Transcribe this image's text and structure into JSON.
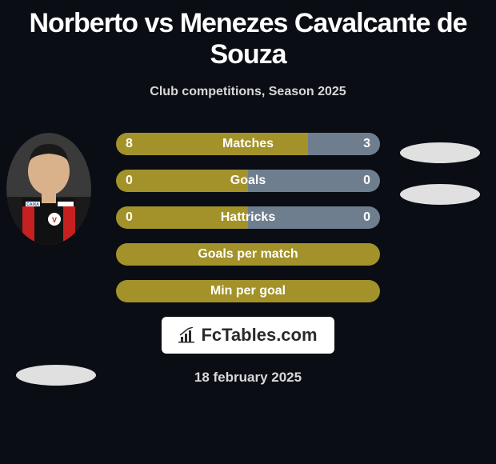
{
  "title": "Norberto vs Menezes Cavalcante de Souza",
  "subtitle": "Club competitions, Season 2025",
  "colors": {
    "olive": "#a39229",
    "slate": "#6f7e8f",
    "ellipse": "#e0e0e0",
    "bg": "#0a0d14",
    "text": "#ffffff"
  },
  "bars": {
    "split": [
      {
        "label": "Matches",
        "left_val": "8",
        "right_val": "3",
        "left_pct": 72.7,
        "left_color": "#a39229",
        "right_color": "#6f7e8f"
      },
      {
        "label": "Goals",
        "left_val": "0",
        "right_val": "0",
        "left_pct": 50,
        "left_color": "#a39229",
        "right_color": "#6f7e8f"
      },
      {
        "label": "Hattricks",
        "left_val": "0",
        "right_val": "0",
        "left_pct": 50,
        "left_color": "#a39229",
        "right_color": "#6f7e8f"
      }
    ],
    "single": [
      {
        "label": "Goals per match",
        "color": "#a39229"
      },
      {
        "label": "Min per goal",
        "color": "#a39229"
      }
    ]
  },
  "logo_text": "FcTables.com",
  "date": "18 february 2025"
}
